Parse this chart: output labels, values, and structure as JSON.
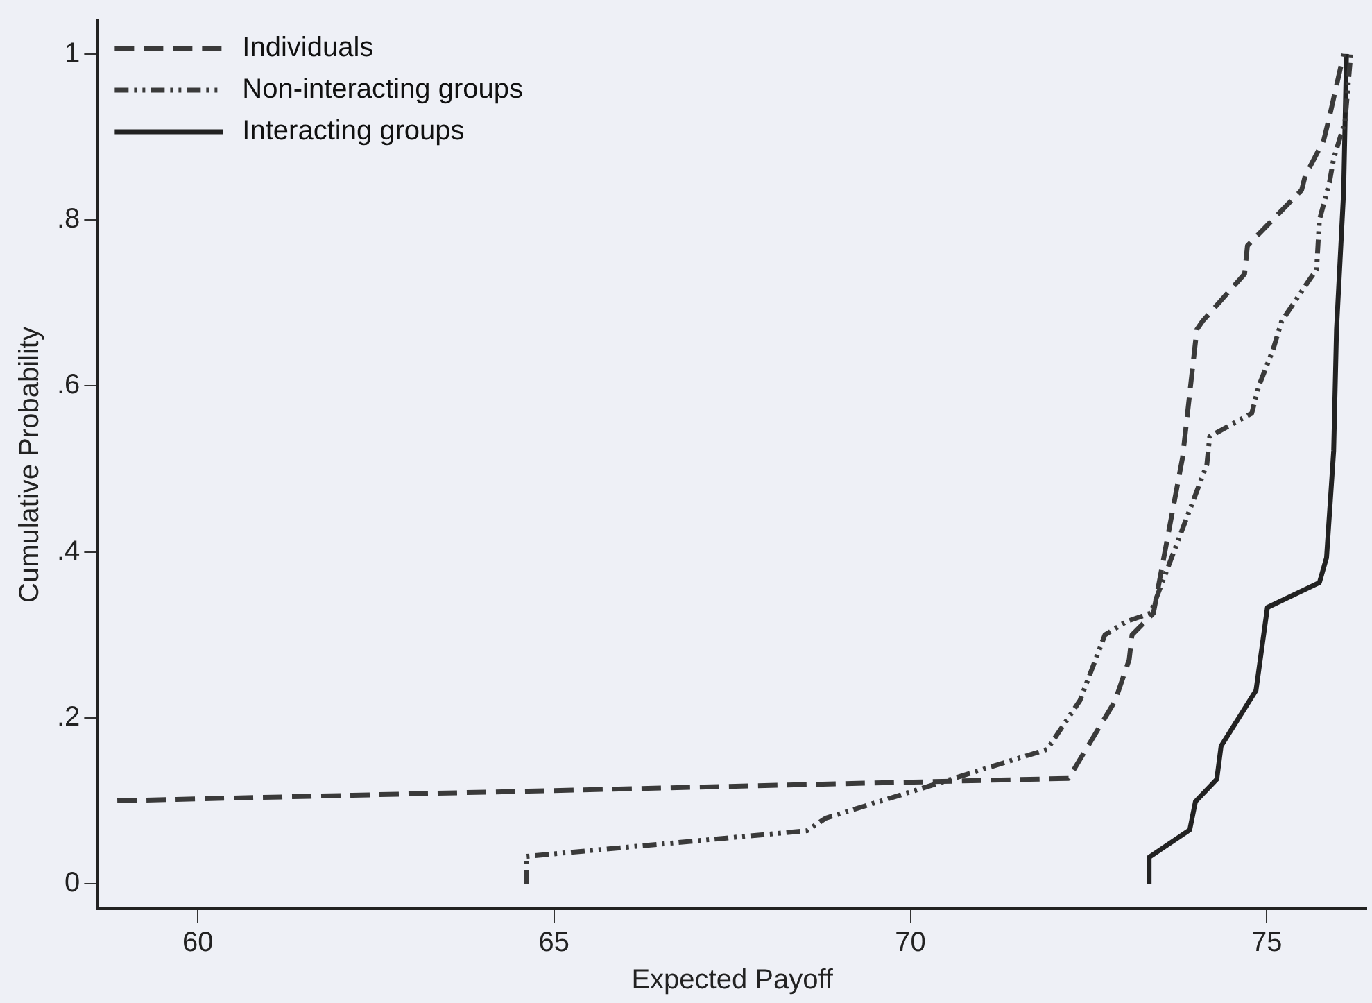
{
  "chart_data": {
    "type": "line",
    "xlabel": "Expected Payoff",
    "ylabel": "Cumulative Probability",
    "xlim": [
      58.6,
      76.4
    ],
    "ylim": [
      -0.03,
      1.04
    ],
    "xticks": [
      60,
      65,
      70,
      75
    ],
    "yticks": [
      {
        "value": 0,
        "label": "0"
      },
      {
        "value": 0.2,
        "label": ".2"
      },
      {
        "value": 0.4,
        "label": ".4"
      },
      {
        "value": 0.6,
        "label": ".6"
      },
      {
        "value": 0.8,
        "label": ".8"
      },
      {
        "value": 1,
        "label": "1"
      }
    ],
    "grid": false,
    "legend": "top left",
    "marker": "none",
    "series": [
      {
        "name": "Individuals",
        "color": "#3a3a3a",
        "line_style": "dashed",
        "x": [
          58.87,
          72.22,
          72.87,
          73.07,
          73.11,
          73.41,
          73.82,
          74.02,
          74.1,
          74.69,
          74.73,
          75.49,
          75.54,
          75.8,
          75.88,
          76.08
        ],
        "values": [
          0.1,
          0.127,
          0.22,
          0.27,
          0.3,
          0.326,
          0.514,
          0.668,
          0.678,
          0.735,
          0.769,
          0.836,
          0.853,
          0.896,
          0.924,
          1
        ]
      },
      {
        "name": "Non-interacting groups",
        "color": "#3a3a3a",
        "line_style": "dotted",
        "x": [
          64.61,
          64.61,
          68.55,
          68.81,
          71.92,
          72.38,
          72.73,
          73.03,
          73.37,
          74.16,
          74.2,
          74.79,
          74.89,
          75.09,
          75.21,
          75.6,
          75.7,
          75.74,
          75.88,
          75.94,
          76.1,
          76.18
        ],
        "values": [
          0,
          0.033,
          0.064,
          0.079,
          0.162,
          0.221,
          0.3,
          0.316,
          0.326,
          0.505,
          0.539,
          0.567,
          0.6,
          0.644,
          0.678,
          0.728,
          0.74,
          0.8,
          0.845,
          0.874,
          0.919,
          1
        ]
      },
      {
        "name": "Interacting groups",
        "color": "#222222",
        "line_style": "solid",
        "x": [
          73.35,
          73.35,
          73.92,
          74.0,
          74.3,
          74.36,
          74.85,
          75.01,
          75.74,
          75.84,
          75.94,
          75.98,
          76.08,
          76.12
        ],
        "values": [
          0,
          0.032,
          0.065,
          0.099,
          0.126,
          0.166,
          0.233,
          0.333,
          0.363,
          0.393,
          0.522,
          0.668,
          0.835,
          1
        ]
      }
    ]
  }
}
